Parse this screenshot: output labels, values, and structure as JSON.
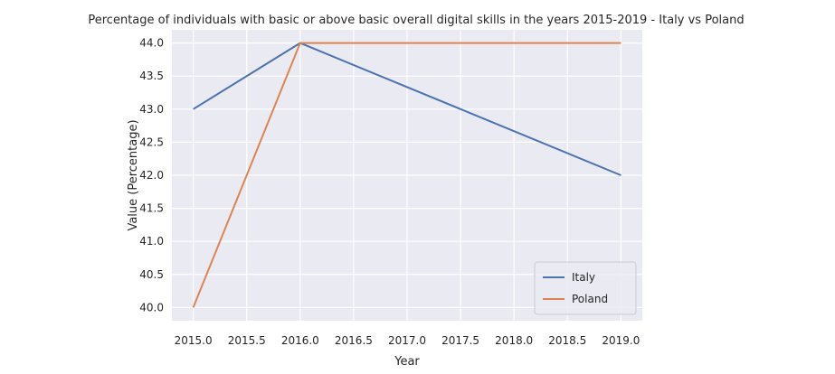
{
  "chart_data": {
    "type": "line",
    "title": "Percentage of individuals with basic or above basic overall digital skills in the years 2015-2019 - Italy vs Poland",
    "xlabel": "Year",
    "ylabel": "Value (Percentage)",
    "xlim": [
      2014.8,
      2019.2
    ],
    "ylim": [
      39.8,
      44.2
    ],
    "xticks": [
      2015.0,
      2015.5,
      2016.0,
      2016.5,
      2017.0,
      2017.5,
      2018.0,
      2018.5,
      2019.0
    ],
    "xtick_labels": [
      "2015.0",
      "2015.5",
      "2016.0",
      "2016.5",
      "2017.0",
      "2017.5",
      "2018.0",
      "2018.5",
      "2019.0"
    ],
    "yticks": [
      40.0,
      40.5,
      41.0,
      41.5,
      42.0,
      42.5,
      43.0,
      43.5,
      44.0
    ],
    "ytick_labels": [
      "40.0",
      "40.5",
      "41.0",
      "41.5",
      "42.0",
      "42.5",
      "43.0",
      "43.5",
      "44.0"
    ],
    "grid": true,
    "legend_position": "lower-right",
    "series": [
      {
        "name": "Italy",
        "color": "#4c72b0",
        "x": [
          2015,
          2016,
          2019
        ],
        "y": [
          43.0,
          44.0,
          42.0
        ]
      },
      {
        "name": "Poland",
        "color": "#dd8452",
        "x": [
          2015,
          2016,
          2019
        ],
        "y": [
          40.0,
          44.0,
          44.0
        ]
      }
    ]
  }
}
